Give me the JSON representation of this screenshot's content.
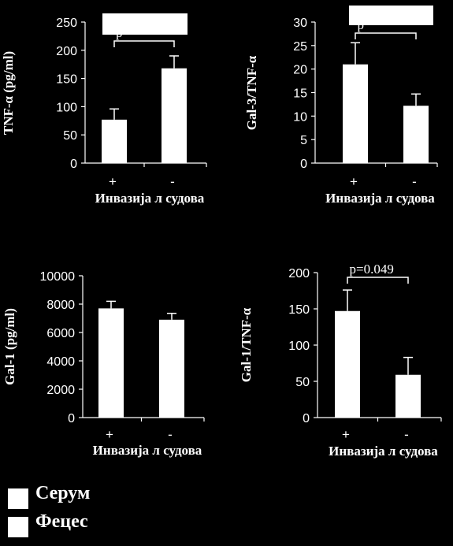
{
  "chart_data": [
    {
      "type": "bar",
      "categories": [
        "+",
        "-"
      ],
      "values": [
        77,
        168
      ],
      "errors": [
        19,
        22
      ],
      "ylim": [
        0,
        250
      ],
      "yticks": [
        0,
        50,
        100,
        150,
        200,
        250
      ],
      "ylabel": "TNF-α (pg/ml)",
      "xlabel": "Инвазија л судова",
      "annotation": "p",
      "annotation_masked": true
    },
    {
      "type": "bar",
      "categories": [
        "+",
        "-"
      ],
      "values": [
        21,
        12.2
      ],
      "errors": [
        4.6,
        2.5
      ],
      "ylim": [
        0,
        30
      ],
      "yticks": [
        0,
        5,
        10,
        15,
        20,
        25,
        30
      ],
      "ylabel": "Gal-3/TNF-α",
      "xlabel": "Инвазија л судова",
      "annotation": "p",
      "annotation_masked": true
    },
    {
      "type": "bar",
      "categories": [
        "+",
        "-"
      ],
      "values": [
        7700,
        6900
      ],
      "errors": [
        500,
        450
      ],
      "ylim": [
        0,
        10000
      ],
      "yticks": [
        0,
        2000,
        4000,
        6000,
        8000,
        10000
      ],
      "ylabel": "Gal-1 (pg/ml)",
      "xlabel": "Инвазија л судова",
      "annotation": ""
    },
    {
      "type": "bar",
      "categories": [
        "+",
        "-"
      ],
      "values": [
        147,
        59
      ],
      "errors": [
        29,
        24
      ],
      "ylim": [
        0,
        200
      ],
      "yticks": [
        0,
        50,
        100,
        150,
        200
      ],
      "ylabel": "Gal-1/TNF-α",
      "xlabel": "Инвазија л судова",
      "annotation": "p=0.049"
    }
  ],
  "legend": [
    {
      "label": "Серум",
      "color": "#ffffff"
    },
    {
      "label": "Фецес",
      "color": "#ffffff"
    }
  ]
}
